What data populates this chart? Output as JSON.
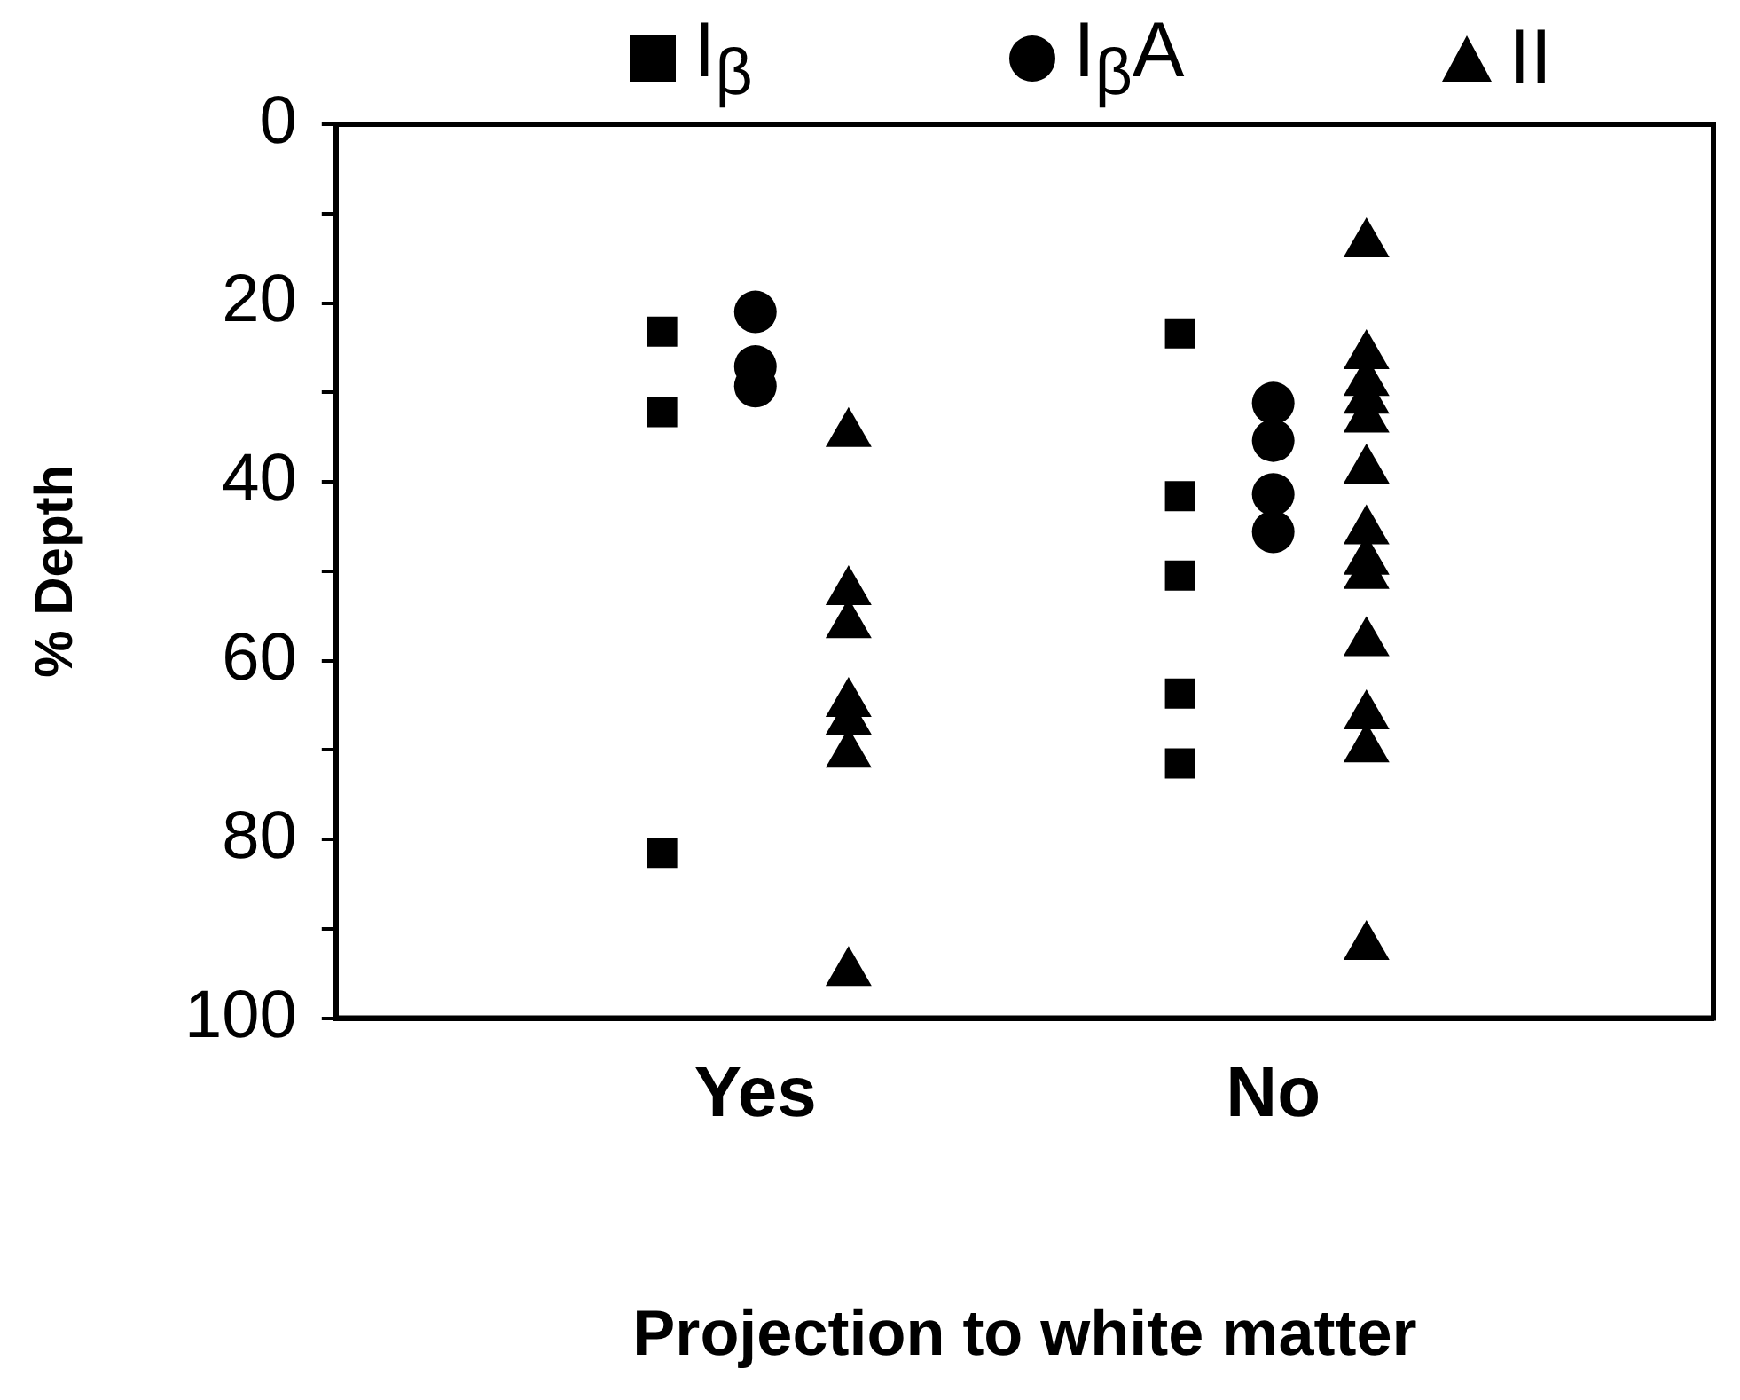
{
  "chart_data": {
    "type": "scatter",
    "xlabel": "Projection to white matter",
    "ylabel": "% Depth",
    "categories": [
      "Yes",
      "No"
    ],
    "ylim": [
      100,
      0
    ],
    "yticks": [
      0,
      {
        "value": 10,
        "label": null
      },
      20,
      {
        "value": 30,
        "label": null
      },
      40,
      {
        "value": 50,
        "label": null
      },
      60,
      {
        "value": 70,
        "label": null
      },
      80,
      {
        "value": 90,
        "label": null
      },
      100
    ],
    "grid": false,
    "legend": "top",
    "series": [
      {
        "name": "I$_{β}$",
        "color": "#000000",
        "marker": "square",
        "x": [
          "Yes",
          "Yes",
          "Yes",
          "No",
          "No",
          "No",
          "No",
          "No"
        ],
        "values": [
          23.2,
          32.2,
          81.5,
          23.4,
          41.6,
          50.5,
          63.7,
          71.5
        ]
      },
      {
        "name": "I$_{β}$A",
        "color": "#000000",
        "marker": "circle",
        "x": [
          "Yes",
          "Yes",
          "Yes",
          "No",
          "No",
          "No",
          "No"
        ],
        "values": [
          21,
          27.1,
          29.3,
          31.2,
          35.4,
          41.4,
          45.6
        ]
      },
      {
        "name": "II",
        "color": "#000000",
        "marker": "triangle",
        "x": [
          "Yes",
          "Yes",
          "Yes",
          "Yes",
          "Yes",
          "Yes",
          "Yes",
          "No",
          "No",
          "No",
          "No",
          "No",
          "No",
          "No",
          "No",
          "No",
          "No",
          "No",
          "No",
          "No"
        ],
        "values": [
          34.6,
          52.3,
          56,
          64.8,
          66.8,
          70.5,
          94.9,
          13.4,
          25.9,
          28.9,
          30.9,
          33,
          38.7,
          45.5,
          48.9,
          50.5,
          58,
          66.2,
          69.9,
          92
        ]
      }
    ]
  }
}
